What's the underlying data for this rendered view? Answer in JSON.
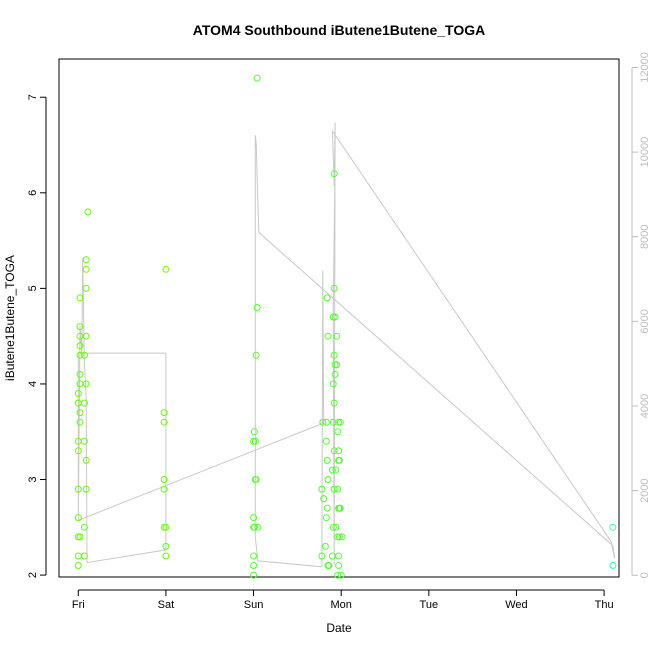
{
  "chart_data": {
    "type": "scatter",
    "title": "ATOM4 Southbound iButene1Butene_TOGA",
    "xlabel": "Date",
    "ylabel": "iButene1Butene_TOGA",
    "x_ticks": [
      "Fri",
      "Sat",
      "Sun",
      "Mon",
      "Tue",
      "Wed",
      "Thu"
    ],
    "xlim": [
      -0.22,
      6.17
    ],
    "ylim": [
      1.98,
      7.4
    ],
    "y_ticks": [
      2,
      3,
      4,
      5,
      6,
      7
    ],
    "y2_ticks": [
      0,
      2000,
      4000,
      6000,
      8000,
      10000,
      12000
    ],
    "y2lim": [
      -40,
      12200
    ],
    "grid": false,
    "colors": {
      "points_early": "#66ff00",
      "points_mid": "#55ff33",
      "points_late": "#33ffaa",
      "line": "#c8c8c8",
      "right_axis": "#bdbdbd"
    },
    "series": [
      {
        "label_axis": "left",
        "kind": "points",
        "points": [
          [
            0.0,
            2.1
          ],
          [
            0.0,
            2.2
          ],
          [
            0.0,
            2.4
          ],
          [
            0.02,
            2.4
          ],
          [
            0.0,
            2.6
          ],
          [
            0.0,
            2.9
          ],
          [
            0.0,
            3.3
          ],
          [
            0.0,
            3.4
          ],
          [
            0.02,
            3.6
          ],
          [
            0.0,
            3.8
          ],
          [
            0.0,
            3.9
          ],
          [
            0.02,
            4.0
          ],
          [
            0.02,
            4.1
          ],
          [
            0.02,
            4.3
          ],
          [
            0.02,
            4.4
          ],
          [
            0.02,
            4.5
          ],
          [
            0.02,
            4.6
          ],
          [
            0.02,
            4.9
          ],
          [
            0.02,
            3.7
          ],
          [
            0.07,
            2.2
          ],
          [
            0.07,
            2.5
          ],
          [
            0.09,
            2.9
          ],
          [
            0.09,
            3.2
          ],
          [
            0.07,
            3.4
          ],
          [
            0.07,
            3.8
          ],
          [
            0.09,
            4.0
          ],
          [
            0.07,
            4.3
          ],
          [
            0.09,
            4.5
          ],
          [
            0.09,
            5.0
          ],
          [
            0.09,
            5.2
          ],
          [
            0.09,
            5.3
          ],
          [
            0.11,
            5.8
          ],
          [
            1.0,
            2.2
          ],
          [
            1.0,
            2.3
          ],
          [
            1.0,
            2.5
          ],
          [
            0.98,
            2.5
          ],
          [
            0.98,
            2.9
          ],
          [
            0.98,
            3.0
          ],
          [
            0.98,
            3.6
          ],
          [
            0.98,
            3.7
          ],
          [
            1.0,
            5.2
          ],
          [
            2.0,
            2.0
          ],
          [
            2.0,
            2.1
          ],
          [
            2.0,
            2.2
          ],
          [
            2.0,
            2.5
          ],
          [
            2.01,
            2.5
          ],
          [
            2.0,
            2.6
          ],
          [
            2.02,
            3.0
          ],
          [
            2.03,
            3.0
          ],
          [
            2.0,
            3.4
          ],
          [
            2.02,
            3.4
          ],
          [
            2.01,
            3.5
          ],
          [
            2.03,
            4.3
          ],
          [
            2.04,
            4.8
          ],
          [
            2.05,
            2.5
          ],
          [
            2.04,
            7.2
          ],
          [
            2.78,
            2.2
          ],
          [
            2.8,
            2.8
          ],
          [
            2.78,
            2.9
          ],
          [
            2.79,
            3.6
          ],
          [
            2.83,
            3.6
          ],
          [
            2.82,
            2.3
          ],
          [
            2.83,
            2.6
          ],
          [
            2.84,
            2.7
          ],
          [
            2.85,
            3.0
          ],
          [
            2.84,
            3.2
          ],
          [
            2.83,
            3.4
          ],
          [
            2.85,
            4.5
          ],
          [
            2.84,
            4.9
          ],
          [
            2.86,
            2.1
          ],
          [
            2.85,
            2.1
          ],
          [
            2.9,
            2.2
          ],
          [
            2.91,
            2.5
          ],
          [
            2.92,
            2.9
          ],
          [
            2.9,
            3.1
          ],
          [
            2.92,
            3.3
          ],
          [
            2.91,
            3.6
          ],
          [
            2.92,
            3.8
          ],
          [
            2.91,
            4.0
          ],
          [
            2.93,
            4.2
          ],
          [
            2.93,
            4.1
          ],
          [
            2.92,
            4.3
          ],
          [
            2.91,
            4.7
          ],
          [
            2.93,
            4.7
          ],
          [
            2.92,
            5.0
          ],
          [
            2.92,
            6.2
          ],
          [
            2.94,
            2.5
          ],
          [
            2.94,
            3.1
          ],
          [
            2.95,
            4.2
          ],
          [
            2.95,
            4.5
          ],
          [
            2.96,
            2.0
          ],
          [
            2.97,
            2.1
          ],
          [
            2.97,
            2.2
          ],
          [
            2.96,
            2.4
          ],
          [
            2.98,
            2.4
          ],
          [
            2.97,
            2.7
          ],
          [
            2.98,
            2.7
          ],
          [
            2.96,
            2.9
          ],
          [
            2.97,
            3.2
          ],
          [
            2.98,
            3.2
          ],
          [
            2.97,
            3.3
          ],
          [
            2.96,
            3.5
          ],
          [
            2.97,
            3.6
          ],
          [
            2.99,
            3.6
          ],
          [
            3.0,
            2.0
          ],
          [
            3.01,
            2.4
          ],
          [
            2.99,
            2.7
          ]
        ]
      },
      {
        "label_axis": "left",
        "kind": "points",
        "points": [
          [
            6.1,
            2.5
          ],
          [
            6.1,
            2.1
          ]
        ]
      },
      {
        "label_axis": "right",
        "kind": "line",
        "points": [
          [
            0.0,
            1300
          ],
          [
            0.02,
            5900
          ],
          [
            0.04,
            5200
          ],
          [
            0.05,
            7500
          ],
          [
            0.07,
            5000
          ],
          [
            0.09,
            4200
          ],
          [
            0.1,
            300
          ],
          [
            1.0,
            600
          ],
          [
            1.0,
            5250
          ],
          [
            0.0,
            5250
          ],
          [
            0.0,
            1300
          ],
          [
            2.8,
            3600
          ],
          [
            2.79,
            7200
          ],
          [
            2.78,
            200
          ],
          [
            2.05,
            340
          ],
          [
            2.02,
            900
          ],
          [
            2.02,
            10400
          ],
          [
            2.03,
            10200
          ],
          [
            2.06,
            8100
          ],
          [
            6.1,
            700
          ],
          [
            6.12,
            400
          ],
          [
            6.08,
            800
          ],
          [
            2.9,
            10500
          ],
          [
            2.92,
            9200
          ],
          [
            2.93,
            10700
          ],
          [
            2.92,
            250
          ],
          [
            2.91,
            6400
          ],
          [
            2.93,
            9700
          ]
        ]
      }
    ]
  }
}
